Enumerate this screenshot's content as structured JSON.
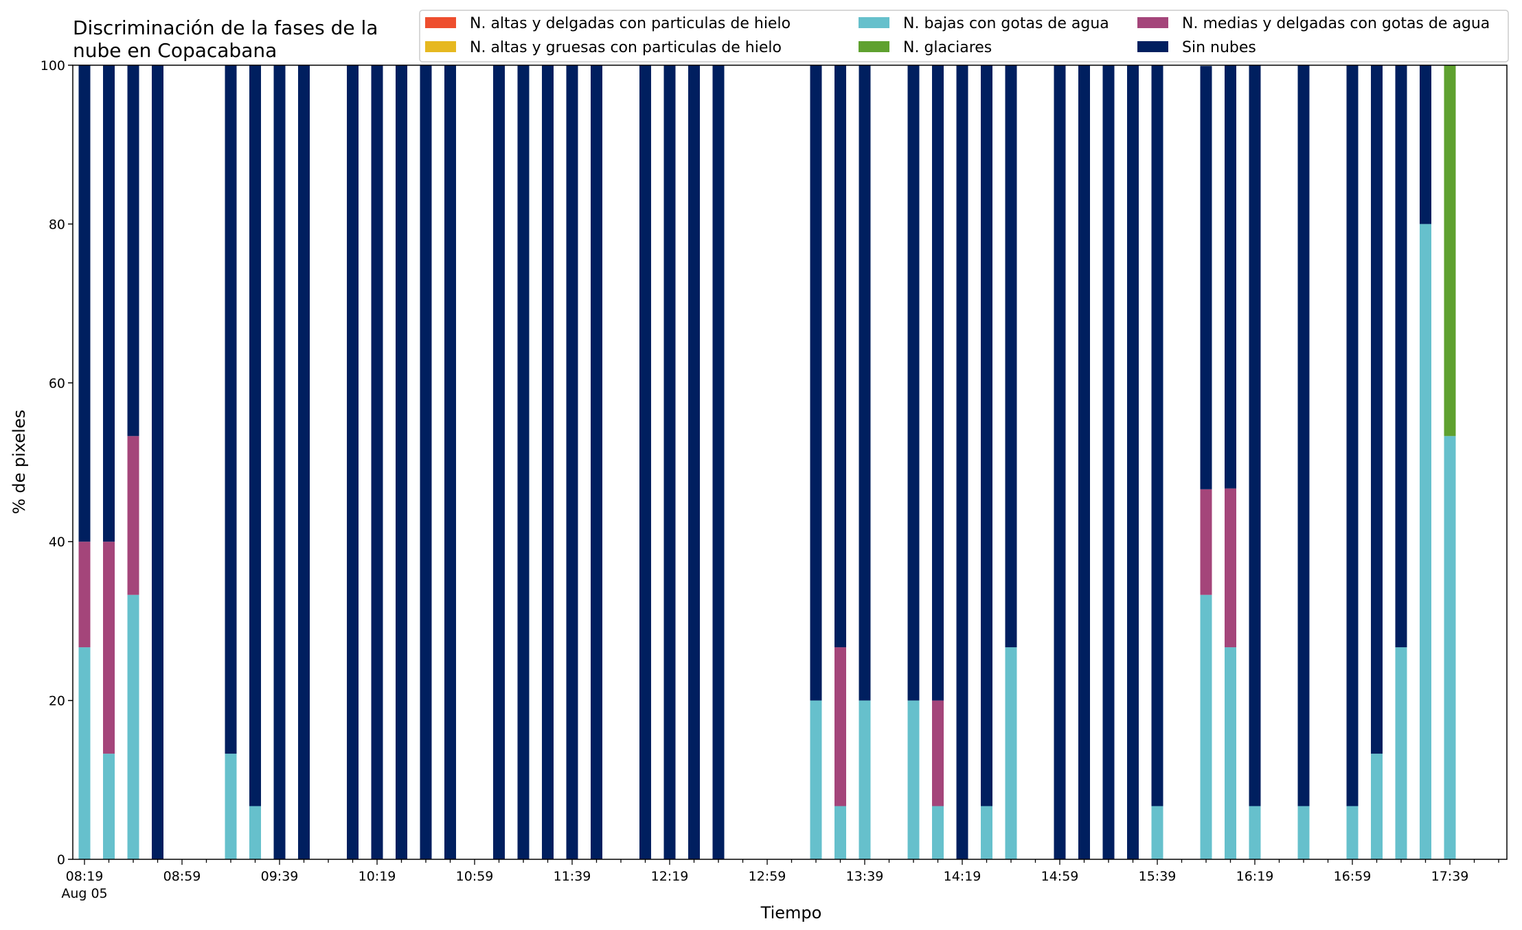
{
  "chart_data": {
    "type": "bar",
    "stacked": true,
    "title_lines": [
      "Discriminación de la fases de la",
      "nube en Copacabana"
    ],
    "xlabel": "Tiempo",
    "ylabel": "% de pixeles",
    "ylim": [
      0,
      100
    ],
    "yticks": [
      0,
      20,
      40,
      60,
      80,
      100
    ],
    "grid": false,
    "legend_position": "top-right",
    "x_step_minutes": 10,
    "x_start": "08:19",
    "x_count": 59,
    "x_tick_every": 4,
    "x_tick_labels": [
      "08:19",
      "08:59",
      "09:39",
      "10:19",
      "10:59",
      "11:39",
      "12:19",
      "12:59",
      "13:39",
      "14:19",
      "14:59",
      "15:39",
      "16:19",
      "16:59",
      "17:39"
    ],
    "x_date_label": "Aug 05",
    "series": [
      {
        "name": "N. altas y delgadas con particulas de hielo",
        "color": "#ee4e2e",
        "values": [
          0,
          0,
          0,
          0,
          0,
          0,
          0,
          0,
          0,
          0,
          0,
          0,
          0,
          0,
          0,
          0,
          0,
          0,
          0,
          0,
          0,
          0,
          0,
          0,
          0,
          0,
          0,
          0,
          0,
          0,
          0,
          0,
          0,
          0,
          0,
          0,
          0,
          0,
          0,
          0,
          0,
          0,
          0,
          0,
          0,
          0,
          0,
          0,
          0,
          0,
          0,
          0,
          0,
          0,
          0,
          0,
          0,
          0,
          0
        ]
      },
      {
        "name": "N. altas y gruesas con particulas de hielo",
        "color": "#e6b820",
        "values": [
          0,
          0,
          0,
          0,
          0,
          0,
          0,
          0,
          0,
          0,
          0,
          0,
          0,
          0,
          0,
          0,
          0,
          0,
          0,
          0,
          0,
          0,
          0,
          0,
          0,
          0,
          0,
          0,
          0,
          0,
          0,
          0,
          0,
          0,
          0,
          0,
          0,
          0,
          0,
          0,
          0,
          0,
          0,
          0,
          0,
          0,
          0,
          0,
          0,
          0,
          0,
          0,
          0,
          0,
          0,
          0,
          0,
          0,
          0
        ]
      },
      {
        "name": "N. bajas con gotas de agua",
        "color": "#66c0cc",
        "values": [
          26.7,
          13.3,
          33.3,
          0,
          null,
          null,
          13.3,
          6.7,
          0,
          0,
          null,
          0,
          0,
          0,
          0,
          0,
          null,
          0,
          0,
          0,
          0,
          0,
          null,
          0,
          0,
          0,
          0,
          null,
          null,
          null,
          20,
          6.7,
          20,
          null,
          20,
          6.7,
          0,
          6.7,
          26.7,
          null,
          0,
          0,
          0,
          0,
          6.7,
          null,
          33.3,
          26.7,
          6.7,
          null,
          6.7,
          null,
          6.7,
          13.3,
          26.7,
          80,
          53.3,
          null,
          null
        ]
      },
      {
        "name": "N. glaciares",
        "color": "#5fa12f",
        "values": [
          0,
          0,
          0,
          0,
          null,
          null,
          0,
          0,
          0,
          0,
          null,
          0,
          0,
          0,
          0,
          0,
          null,
          0,
          0,
          0,
          0,
          0,
          null,
          0,
          0,
          0,
          0,
          null,
          null,
          null,
          0,
          0,
          0,
          null,
          0,
          0,
          0,
          0,
          0,
          null,
          0,
          0,
          0,
          0,
          0,
          null,
          0,
          0,
          0,
          null,
          0,
          null,
          0,
          0,
          0,
          0,
          46.7,
          null,
          null
        ]
      },
      {
        "name": "N. medias y delgadas con gotas de agua",
        "color": "#a4457a",
        "values": [
          13.3,
          26.7,
          20,
          0,
          null,
          null,
          0,
          0,
          0,
          0,
          null,
          0,
          0,
          0,
          0,
          0,
          null,
          0,
          0,
          0,
          0,
          0,
          null,
          0,
          0,
          0,
          0,
          null,
          null,
          null,
          0,
          20,
          0,
          null,
          0,
          13.3,
          0,
          0,
          0,
          null,
          0,
          0,
          0,
          0,
          0,
          null,
          13.3,
          20,
          0,
          null,
          0,
          null,
          0,
          0,
          0,
          0,
          0,
          null,
          null
        ]
      },
      {
        "name": "Sin nubes",
        "color": "#001f5f",
        "values": [
          60,
          60,
          46.7,
          100,
          null,
          null,
          86.7,
          93.3,
          100,
          100,
          null,
          100,
          100,
          100,
          100,
          100,
          null,
          100,
          100,
          100,
          100,
          100,
          null,
          100,
          100,
          100,
          100,
          null,
          null,
          null,
          80,
          73.3,
          80,
          null,
          80,
          80,
          100,
          93.3,
          73.3,
          null,
          100,
          100,
          100,
          100,
          93.3,
          null,
          53.3,
          53.3,
          93.3,
          null,
          93.3,
          null,
          93.3,
          86.7,
          73.3,
          20,
          0,
          null,
          null
        ]
      }
    ]
  }
}
